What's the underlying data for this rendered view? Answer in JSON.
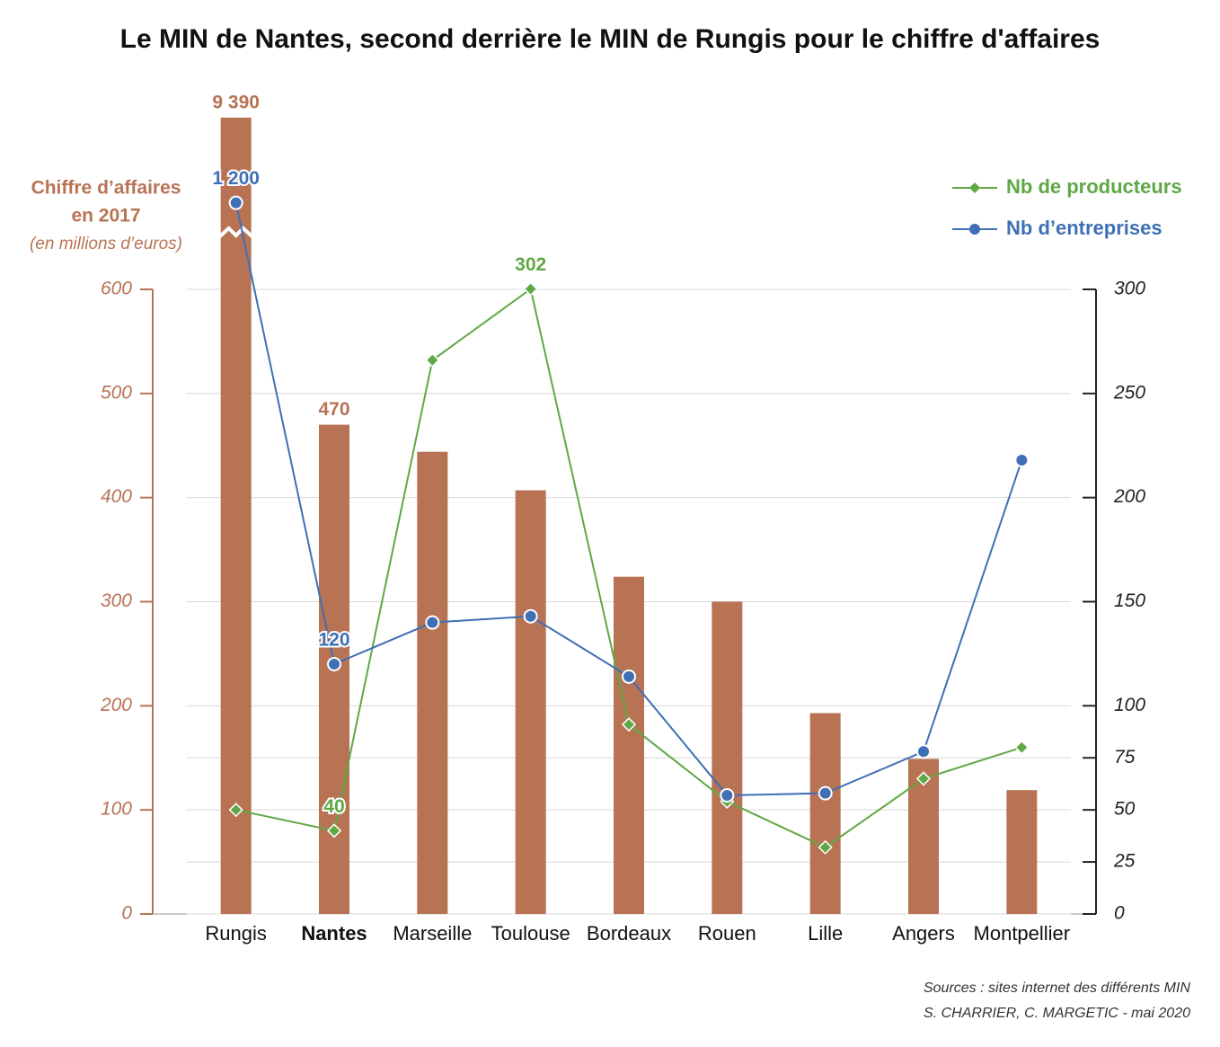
{
  "chart_data": {
    "type": "bar-line",
    "title": "Le MIN de Nantes, second derrière le MIN de Rungis pour le chiffre d'affaires",
    "ylabel": [
      "Chiffre d’affaires",
      "en 2017"
    ],
    "ylabel_note": "(en millions d’euros)",
    "categories": [
      "Rungis",
      "Nantes",
      "Marseille",
      "Toulouse",
      "Bordeaux",
      "Rouen",
      "Lille",
      "Angers",
      "Montpellier"
    ],
    "series": [
      {
        "name": "Chiffre d’affaires",
        "kind": "bar",
        "color": "#b87354",
        "values": [
          9390,
          470,
          444,
          407,
          324,
          300,
          193,
          149,
          119
        ],
        "value_labels": [
          "9 390",
          "470",
          null,
          null,
          null,
          null,
          null,
          null,
          null
        ]
      },
      {
        "name": "Nb de producteurs",
        "kind": "line",
        "marker": "diamond",
        "axis": "y2",
        "color": "#5fa845",
        "values": [
          50,
          40,
          266,
          302,
          91,
          54,
          32,
          65,
          80
        ],
        "value_labels": [
          null,
          "40",
          null,
          "302",
          null,
          null,
          null,
          null,
          null
        ]
      },
      {
        "name": "Nb d’entreprises",
        "kind": "line",
        "marker": "circle",
        "axis": "y2",
        "color": "#3f6fb5",
        "values": [
          1200,
          120,
          140,
          143,
          114,
          57,
          58,
          78,
          218
        ],
        "value_labels": [
          "1 200",
          "120",
          null,
          null,
          null,
          null,
          null,
          null,
          null
        ]
      }
    ],
    "ylim": [
      0,
      600
    ],
    "yticks": [
      0,
      100,
      200,
      300,
      400,
      500,
      600
    ],
    "y2lim": [
      0,
      300
    ],
    "y2ticks": [
      0,
      25,
      50,
      75,
      100,
      150,
      200,
      250,
      300
    ],
    "grid": true,
    "legend": "top-right",
    "sources": [
      "Sources : sites internet des différents MIN",
      "S. CHARRIER, C. MARGETIC - mai 2020"
    ]
  }
}
